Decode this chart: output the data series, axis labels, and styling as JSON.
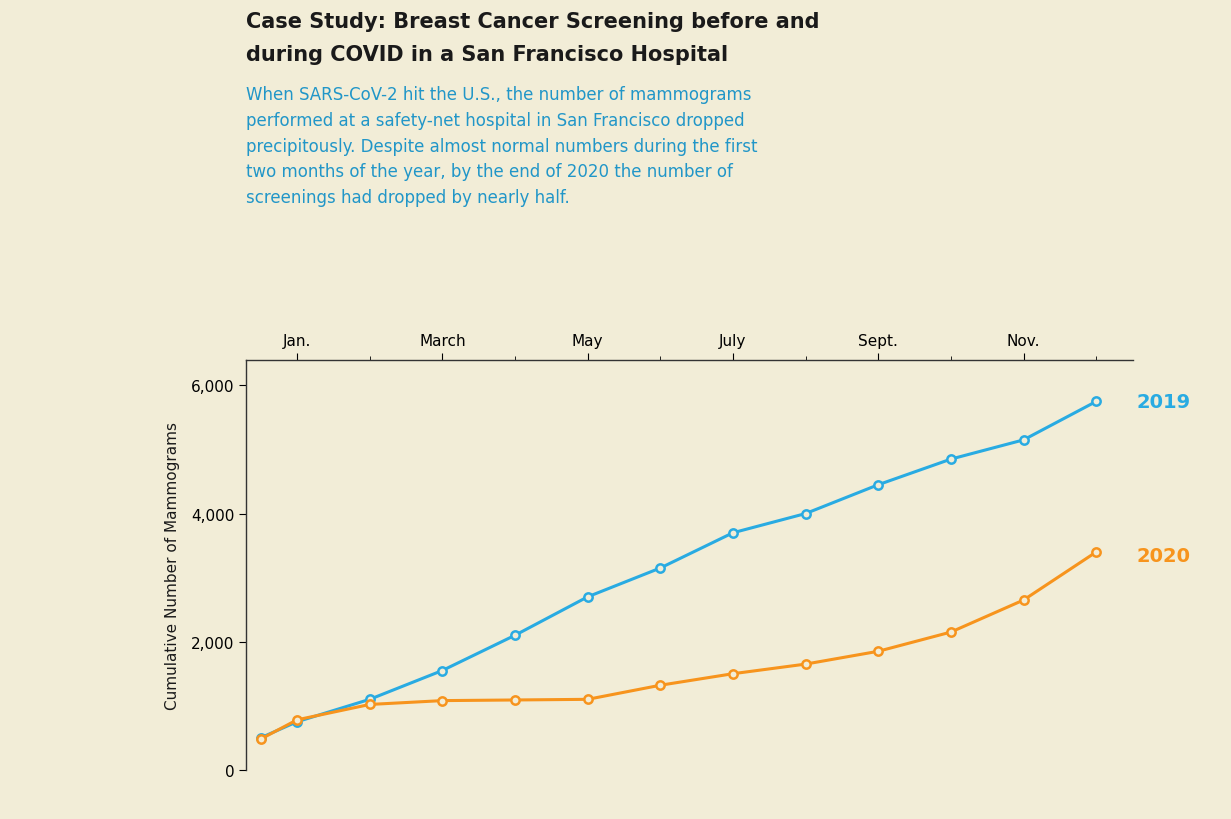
{
  "title_line1": "Case Study: Breast Cancer Screening before and",
  "title_line2": "during COVID in a San Francisco Hospital",
  "subtitle": "When SARS-CoV-2 hit the U.S., the number of mammograms\nperformed at a safety-net hospital in San Francisco dropped\nprecipitously. Despite almost normal numbers during the first\ntwo months of the year, by the end of 2020 the number of\nscreenings had dropped by nearly half.",
  "subtitle_color": "#2196C8",
  "background_color": "#F2EDD7",
  "ylabel": "Cumulative Number of Mammograms",
  "x_tick_labels": [
    "Jan.",
    "March",
    "May",
    "July",
    "Sept.",
    "Nov."
  ],
  "x_tick_positions": [
    1,
    3,
    5,
    7,
    9,
    11
  ],
  "ylim": [
    0,
    6400
  ],
  "yticks": [
    0,
    2000,
    4000,
    6000
  ],
  "months_x": [
    0.5,
    1,
    2,
    3,
    4,
    5,
    6,
    7,
    8,
    9,
    10,
    11,
    12
  ],
  "vals_2019": [
    500,
    750,
    1100,
    1550,
    2100,
    2700,
    3150,
    3700,
    4000,
    4450,
    4850,
    5150,
    5750
  ],
  "vals_2020": [
    480,
    780,
    1020,
    1080,
    1090,
    1100,
    1320,
    1500,
    1650,
    1850,
    2150,
    2650,
    3400
  ],
  "color_2019": "#29ABE2",
  "color_2020": "#F7941D",
  "label_2019": "2019",
  "label_2020": "2020",
  "title_color": "#1a1a1a",
  "title_fontsize": 15,
  "subtitle_fontsize": 12,
  "tick_fontsize": 11,
  "ylabel_fontsize": 11,
  "label_fontsize": 14
}
